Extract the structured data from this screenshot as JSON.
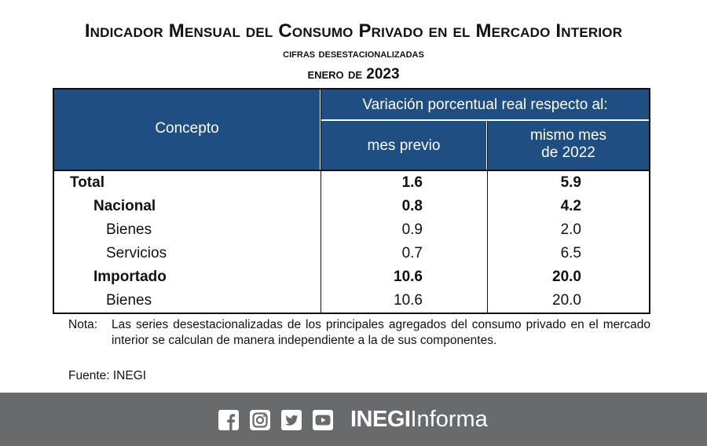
{
  "header": {
    "title": "Indicador Mensual del Consumo Privado en el Mercado Interior",
    "subtitle": "cifras desestacionalizadas",
    "period": "enero de 2023"
  },
  "table": {
    "col_concepto": "Concepto",
    "col_group": "Variación porcentual real respecto al:",
    "col_previo": "mes previo",
    "col_mismo_line1": "mismo mes",
    "col_mismo_line2": "de 2022",
    "rows": [
      {
        "label": "Total",
        "mes_previo": "1.6",
        "mismo_mes": "5.9"
      },
      {
        "label": "Nacional",
        "mes_previo": "0.8",
        "mismo_mes": "4.2"
      },
      {
        "label": "Bienes",
        "mes_previo": "0.9",
        "mismo_mes": "2.0"
      },
      {
        "label": "Servicios",
        "mes_previo": "0.7",
        "mismo_mes": "6.5"
      },
      {
        "label": "Importado",
        "mes_previo": "10.6",
        "mismo_mes": "20.0"
      },
      {
        "label": "Bienes",
        "mes_previo": "10.6",
        "mismo_mes": "20.0"
      }
    ]
  },
  "note": {
    "label": "Nota:",
    "text": "Las series desestacionalizadas de los principales agregados del consumo privado en el mercado interior se calculan de manera independiente a la de sus componentes."
  },
  "source": "Fuente: INEGI",
  "footer": {
    "icons": [
      "facebook-icon",
      "instagram-icon",
      "twitter-icon",
      "youtube-icon"
    ],
    "brand_bold": "INEGI",
    "brand_light": "Informa"
  }
}
